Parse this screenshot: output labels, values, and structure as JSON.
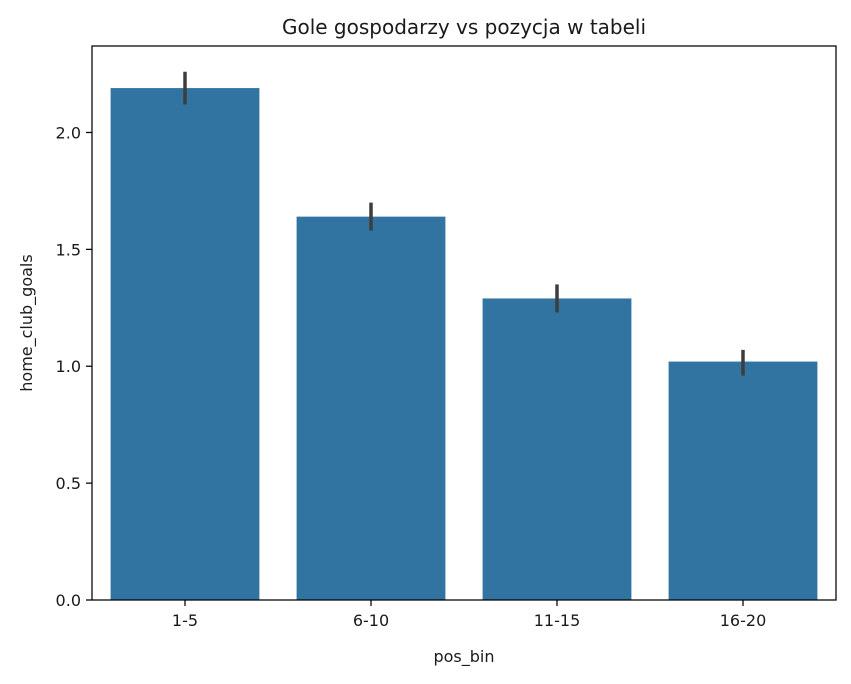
{
  "chart_data": {
    "type": "bar",
    "title": "Gole gospodarzy vs pozycja w tabeli",
    "xlabel": "pos_bin",
    "ylabel": "home_club_goals",
    "categories": [
      "1-5",
      "6-10",
      "11-15",
      "16-20"
    ],
    "values": [
      2.19,
      1.64,
      1.29,
      1.02
    ],
    "error_low": [
      2.12,
      1.58,
      1.23,
      0.96
    ],
    "error_high": [
      2.26,
      1.7,
      1.35,
      1.07
    ],
    "ylim": [
      0,
      2.37
    ],
    "yticks": [
      0.0,
      0.5,
      1.0,
      1.5,
      2.0
    ],
    "ytick_labels": [
      "0.0",
      "0.5",
      "1.0",
      "1.5",
      "2.0"
    ],
    "grid": false,
    "bar_color": "#3274a1",
    "error_color": "#3d3d3d"
  }
}
